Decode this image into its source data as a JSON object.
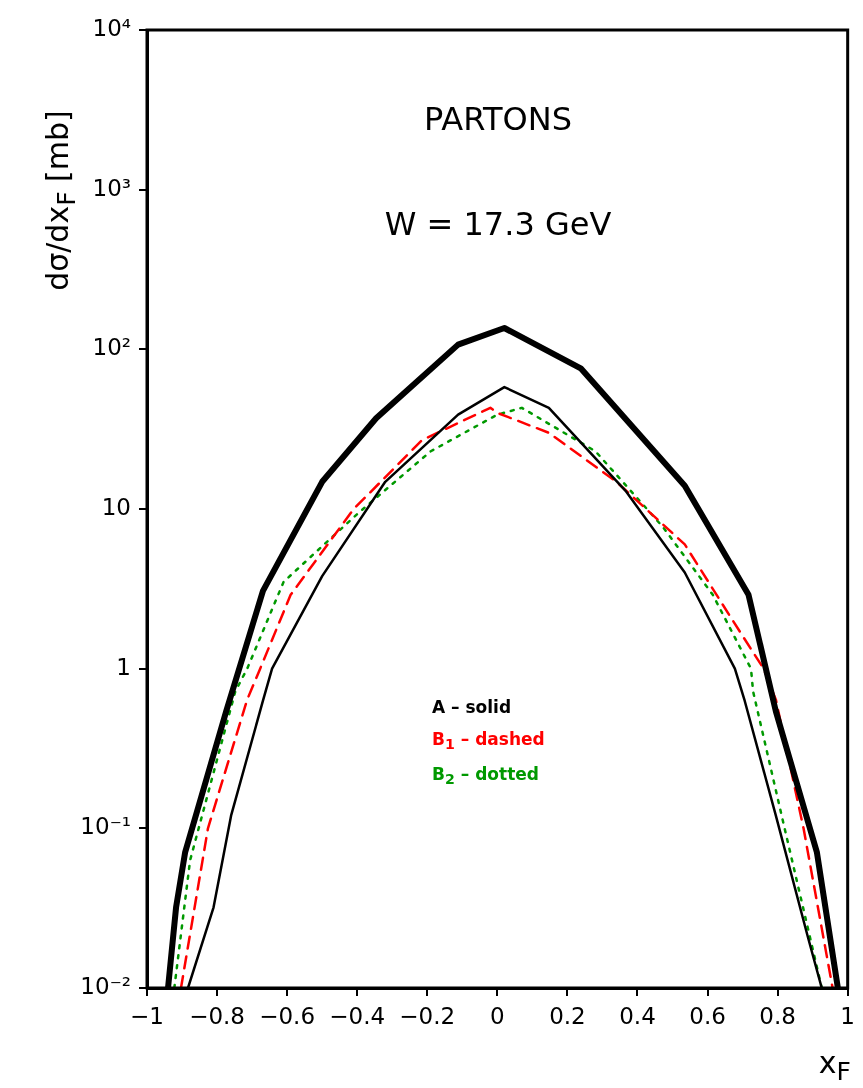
{
  "chart_data": {
    "type": "line",
    "xlabel": "x$_{F}$",
    "ylabel": "dσ/dx$_{F}$ [mb]",
    "annotations": [
      "PARTONS",
      "W = 17.3 GeV"
    ],
    "log": "y",
    "grid": false,
    "legend": "bottom",
    "marker": "none",
    "xlim": [
      -1,
      1
    ],
    "xticks": [
      -1,
      -0.8,
      -0.6,
      -0.4,
      -0.2,
      0,
      0.2,
      0.4,
      0.6,
      0.8,
      1
    ],
    "ylim": [
      0.01,
      10000
    ],
    "yticks": [
      {
        "value": 0.01,
        "label": "10⁻²"
      },
      {
        "value": 0.1,
        "label": "10⁻¹"
      },
      1,
      10,
      {
        "value": 100,
        "label": "10²"
      },
      {
        "value": 1000,
        "label": "10³"
      },
      {
        "value": 10000,
        "label": "10⁴"
      }
    ],
    "series": [
      {
        "color": "#000000",
        "line_style": "solid",
        "x": [
          -0.94,
          -0.917,
          -0.891,
          -0.774,
          -0.669,
          -0.5,
          -0.346,
          -0.112,
          0.02,
          0.238,
          0.535,
          0.717,
          0.795,
          0.912,
          0.972
        ],
        "values": [
          0.01,
          0.032,
          0.071,
          0.54,
          3.07,
          14.8,
          37,
          107,
          136,
          76,
          14,
          2.9,
          0.54,
          0.071,
          0.01
        ]
      },
      {
        "name": "A – solid",
        "color": "#000000",
        "line_style": "solid",
        "x": [
          -0.883,
          -0.81,
          -0.76,
          -0.669,
          -0.643,
          -0.5,
          -0.32,
          -0.112,
          0.02,
          0.147,
          0.366,
          0.535,
          0.678,
          0.706,
          0.795,
          0.886,
          0.926
        ],
        "values": [
          0.01,
          0.032,
          0.12,
          0.63,
          1.0,
          3.8,
          14.8,
          39,
          58,
          43,
          13,
          4.0,
          1.0,
          0.63,
          0.12,
          0.021,
          0.01
        ]
      },
      {
        "name": "B$_{1}$ – dashed",
        "color": "#ff0000",
        "line_style": "dashed",
        "x": [
          -0.903,
          -0.826,
          -0.714,
          -0.677,
          -0.59,
          -0.41,
          -0.215,
          -0.02,
          0,
          0.147,
          0.34,
          0.535,
          0.666,
          0.76,
          0.795,
          0.874,
          0.957
        ],
        "values": [
          0.01,
          0.1,
          0.64,
          1.0,
          2.9,
          10,
          27,
          43,
          40,
          30,
          14.8,
          6.0,
          2.1,
          1.0,
          0.64,
          0.1,
          0.01
        ]
      },
      {
        "name": "B$_{2}$ – dotted",
        "color": "#009900",
        "line_style": "dotted",
        "x": [
          -0.922,
          -0.877,
          -0.748,
          -0.714,
          -0.61,
          -0.4,
          -0.19,
          0,
          0.07,
          0.28,
          0.473,
          0.615,
          0.724,
          0.73,
          0.82,
          0.926
        ],
        "values": [
          0.01,
          0.063,
          0.72,
          1.0,
          3.5,
          9.3,
          23,
          39,
          43,
          23,
          7.7,
          2.9,
          1.0,
          0.72,
          0.1,
          0.01
        ]
      }
    ]
  }
}
